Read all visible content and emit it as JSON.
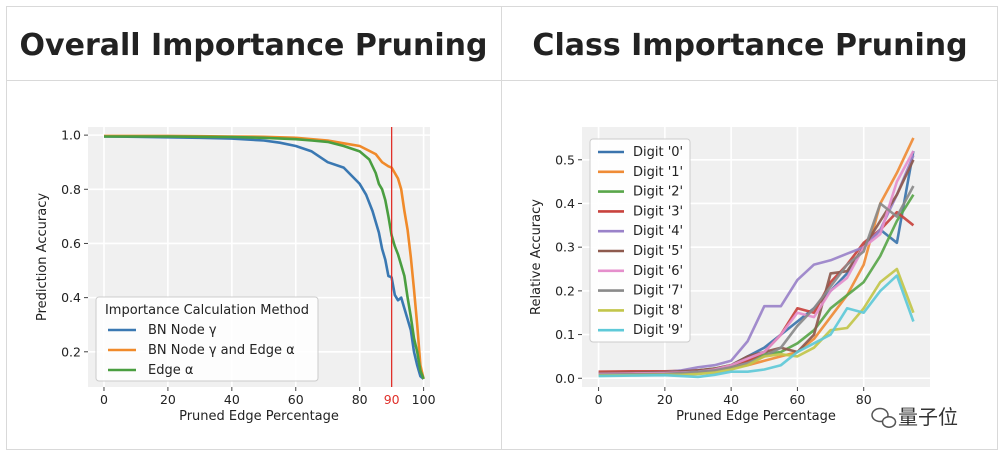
{
  "panels": {
    "left_title": "Overall Importance Pruning",
    "right_title": "Class Importance Pruning"
  },
  "watermark": {
    "text": "量子位"
  },
  "colors": {
    "blue": "#3a78b2",
    "orange": "#f08a2a",
    "green": "#4a9e40",
    "red_line": "#e0302a",
    "digits": [
      "#3b74ad",
      "#ef8b36",
      "#59a64a",
      "#c8423d",
      "#9a82c9",
      "#8e5a4e",
      "#e58fcc",
      "#8a8a8a",
      "#c2c54a",
      "#5ec9d8"
    ]
  },
  "chart_data": [
    {
      "type": "line",
      "xlabel": "Pruned Edge Percentage",
      "ylabel": "Prediction Accuracy",
      "xlim": [
        -5,
        102
      ],
      "ylim": [
        0.07,
        1.03
      ],
      "xticks": [
        0,
        20,
        40,
        60,
        80,
        100
      ],
      "xtick_labels": [
        "0",
        "20",
        "40",
        "60",
        "80",
        "100"
      ],
      "yticks": [
        0.2,
        0.4,
        0.6,
        0.8,
        1.0
      ],
      "ytick_labels": [
        "0.2",
        "0.4",
        "0.6",
        "0.8",
        "1.0"
      ],
      "grid": true,
      "legend_title": "Importance Calculation Method",
      "legend_position": "lower-left",
      "vline": {
        "x": 90,
        "label": "90"
      },
      "series": [
        {
          "name": "BN Node γ",
          "x": [
            0,
            10,
            20,
            30,
            40,
            50,
            55,
            60,
            65,
            70,
            75,
            80,
            82,
            84,
            86,
            87,
            88,
            89,
            90,
            91,
            92,
            93,
            94,
            95,
            96,
            97,
            98,
            99,
            100
          ],
          "y": [
            0.995,
            0.994,
            0.992,
            0.99,
            0.987,
            0.98,
            0.972,
            0.96,
            0.94,
            0.9,
            0.88,
            0.82,
            0.78,
            0.72,
            0.64,
            0.58,
            0.54,
            0.48,
            0.475,
            0.41,
            0.39,
            0.4,
            0.36,
            0.32,
            0.28,
            0.2,
            0.15,
            0.11,
            0.1
          ]
        },
        {
          "name": "BN Node γ and Edge α",
          "x": [
            0,
            10,
            20,
            30,
            40,
            50,
            60,
            70,
            75,
            80,
            85,
            87,
            89,
            90,
            91,
            92,
            93,
            94,
            95,
            96,
            97,
            98,
            99,
            100
          ],
          "y": [
            0.997,
            0.997,
            0.997,
            0.996,
            0.995,
            0.994,
            0.99,
            0.98,
            0.97,
            0.96,
            0.93,
            0.9,
            0.885,
            0.88,
            0.86,
            0.84,
            0.8,
            0.72,
            0.65,
            0.55,
            0.43,
            0.3,
            0.15,
            0.1
          ]
        },
        {
          "name": "Edge α",
          "x": [
            0,
            10,
            20,
            30,
            40,
            50,
            60,
            65,
            70,
            75,
            80,
            83,
            85,
            86,
            87,
            88,
            89,
            90,
            91,
            92,
            93,
            94,
            95,
            96,
            97,
            98,
            99,
            100
          ],
          "y": [
            0.995,
            0.995,
            0.995,
            0.994,
            0.993,
            0.99,
            0.985,
            0.98,
            0.975,
            0.96,
            0.94,
            0.91,
            0.86,
            0.82,
            0.8,
            0.76,
            0.7,
            0.63,
            0.59,
            0.56,
            0.52,
            0.48,
            0.4,
            0.33,
            0.25,
            0.2,
            0.13,
            0.1
          ]
        }
      ]
    },
    {
      "type": "line",
      "xlabel": "Pruned Edge Percentage",
      "ylabel": "Relative Accuracy",
      "xlim": [
        -5,
        100
      ],
      "ylim": [
        -0.02,
        0.575
      ],
      "xticks": [
        0,
        20,
        40,
        60,
        80
      ],
      "xtick_labels": [
        "0",
        "20",
        "40",
        "60",
        "80"
      ],
      "yticks": [
        0.0,
        0.1,
        0.2,
        0.3,
        0.4,
        0.5
      ],
      "ytick_labels": [
        "0.0",
        "0.1",
        "0.2",
        "0.3",
        "0.4",
        "0.5"
      ],
      "grid": true,
      "legend_position": "upper-left",
      "x": [
        0,
        10,
        20,
        25,
        30,
        35,
        40,
        45,
        50,
        55,
        60,
        65,
        70,
        75,
        80,
        85,
        90,
        95
      ],
      "series": [
        {
          "name": "Digit '0'",
          "values": [
            0.01,
            0.011,
            0.012,
            0.013,
            0.015,
            0.02,
            0.03,
            0.05,
            0.07,
            0.1,
            0.13,
            0.16,
            0.2,
            0.24,
            0.3,
            0.34,
            0.31,
            0.52
          ]
        },
        {
          "name": "Digit '1'",
          "values": [
            0.012,
            0.013,
            0.014,
            0.015,
            0.017,
            0.02,
            0.025,
            0.03,
            0.04,
            0.05,
            0.06,
            0.09,
            0.14,
            0.19,
            0.26,
            0.4,
            0.47,
            0.55
          ]
        },
        {
          "name": "Digit '2'",
          "values": [
            0.01,
            0.012,
            0.013,
            0.015,
            0.018,
            0.022,
            0.03,
            0.04,
            0.055,
            0.06,
            0.08,
            0.11,
            0.16,
            0.19,
            0.22,
            0.28,
            0.36,
            0.42
          ]
        },
        {
          "name": "Digit '3'",
          "values": [
            0.015,
            0.016,
            0.016,
            0.017,
            0.018,
            0.02,
            0.03,
            0.04,
            0.06,
            0.1,
            0.16,
            0.15,
            0.22,
            0.26,
            0.31,
            0.34,
            0.38,
            0.35
          ]
        },
        {
          "name": "Digit '4'",
          "values": [
            0.011,
            0.012,
            0.014,
            0.018,
            0.025,
            0.03,
            0.04,
            0.085,
            0.165,
            0.165,
            0.225,
            0.26,
            0.27,
            0.285,
            0.3,
            0.34,
            0.42,
            0.51
          ]
        },
        {
          "name": "Digit '5'",
          "values": [
            0.012,
            0.013,
            0.014,
            0.016,
            0.018,
            0.022,
            0.03,
            0.05,
            0.06,
            0.07,
            0.06,
            0.1,
            0.24,
            0.245,
            0.3,
            0.36,
            0.42,
            0.5
          ]
        },
        {
          "name": "Digit '6'",
          "values": [
            0.01,
            0.011,
            0.012,
            0.013,
            0.015,
            0.02,
            0.03,
            0.045,
            0.06,
            0.1,
            0.15,
            0.14,
            0.2,
            0.23,
            0.3,
            0.33,
            0.45,
            0.52
          ]
        },
        {
          "name": "Digit '7'",
          "values": [
            0.008,
            0.009,
            0.01,
            0.012,
            0.015,
            0.018,
            0.025,
            0.035,
            0.05,
            0.07,
            0.12,
            0.16,
            0.21,
            0.26,
            0.29,
            0.4,
            0.37,
            0.44
          ]
        },
        {
          "name": "Digit '8'",
          "values": [
            0.006,
            0.007,
            0.008,
            0.008,
            0.01,
            0.013,
            0.02,
            0.03,
            0.05,
            0.055,
            0.05,
            0.07,
            0.11,
            0.115,
            0.16,
            0.22,
            0.25,
            0.15
          ]
        },
        {
          "name": "Digit '9'",
          "values": [
            0.005,
            0.006,
            0.007,
            0.005,
            0.003,
            0.008,
            0.015,
            0.015,
            0.02,
            0.03,
            0.06,
            0.08,
            0.1,
            0.16,
            0.15,
            0.2,
            0.235,
            0.13
          ]
        }
      ]
    }
  ]
}
